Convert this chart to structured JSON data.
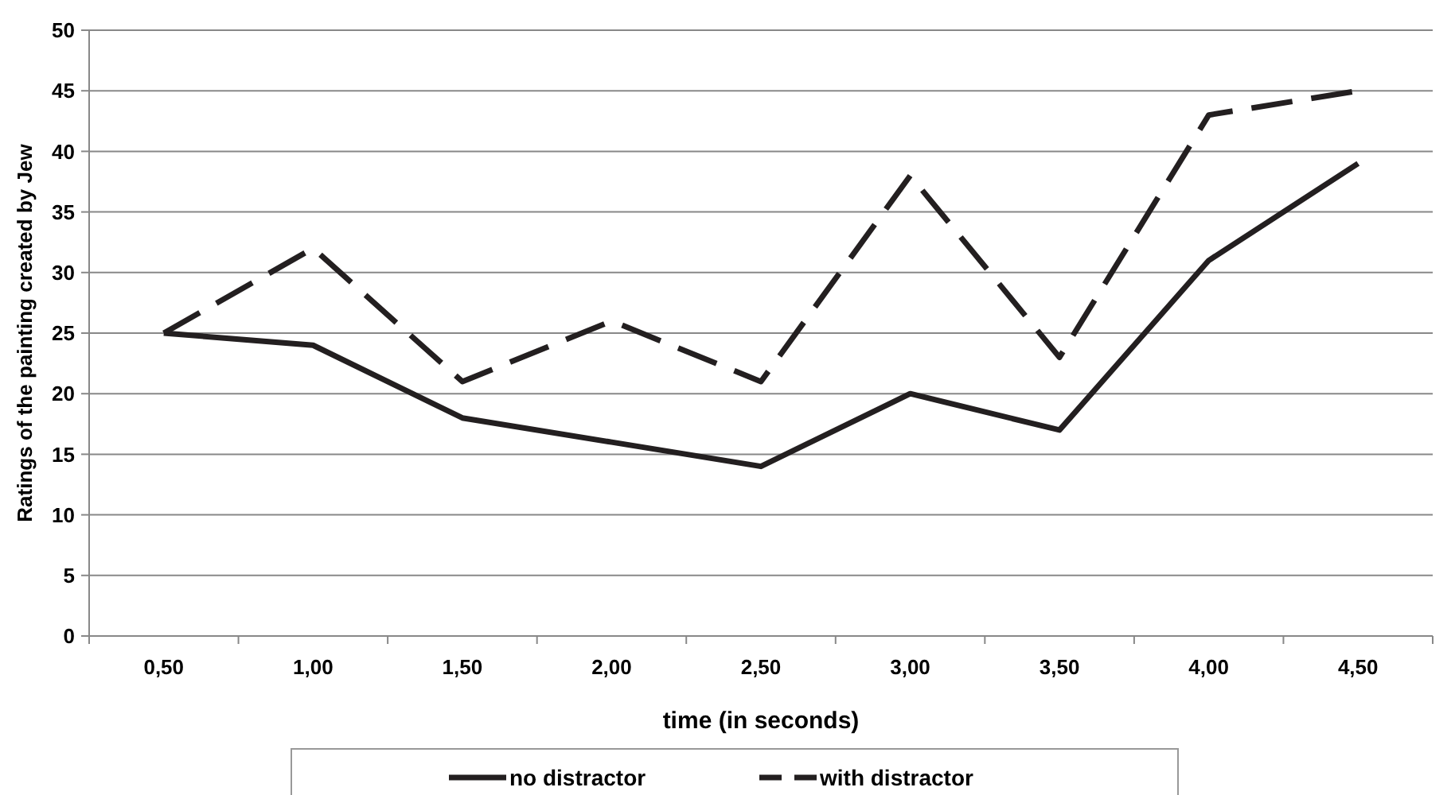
{
  "chart_data": {
    "type": "line",
    "xlabel": "time (in seconds)",
    "ylabel": "Ratings of the painting created by Jew",
    "categories": [
      "0,50",
      "1,00",
      "1,50",
      "2,00",
      "2,50",
      "3,00",
      "3,50",
      "4,00",
      "4,50"
    ],
    "series": [
      {
        "name": "no distractor",
        "color": "#231f20",
        "line_style": "solid",
        "values": [
          25,
          24,
          18,
          16,
          14,
          20,
          17,
          31,
          39
        ]
      },
      {
        "name": "with distractor",
        "color": "#231f20",
        "line_style": "dashed",
        "values": [
          25,
          32,
          21,
          26,
          21,
          38,
          23,
          43,
          45
        ]
      }
    ],
    "ylim": [
      0,
      50
    ],
    "yticks": [
      0,
      5,
      10,
      15,
      20,
      25,
      30,
      35,
      40,
      45,
      50
    ],
    "grid": "y",
    "legend": "bottom",
    "marker": "none"
  }
}
